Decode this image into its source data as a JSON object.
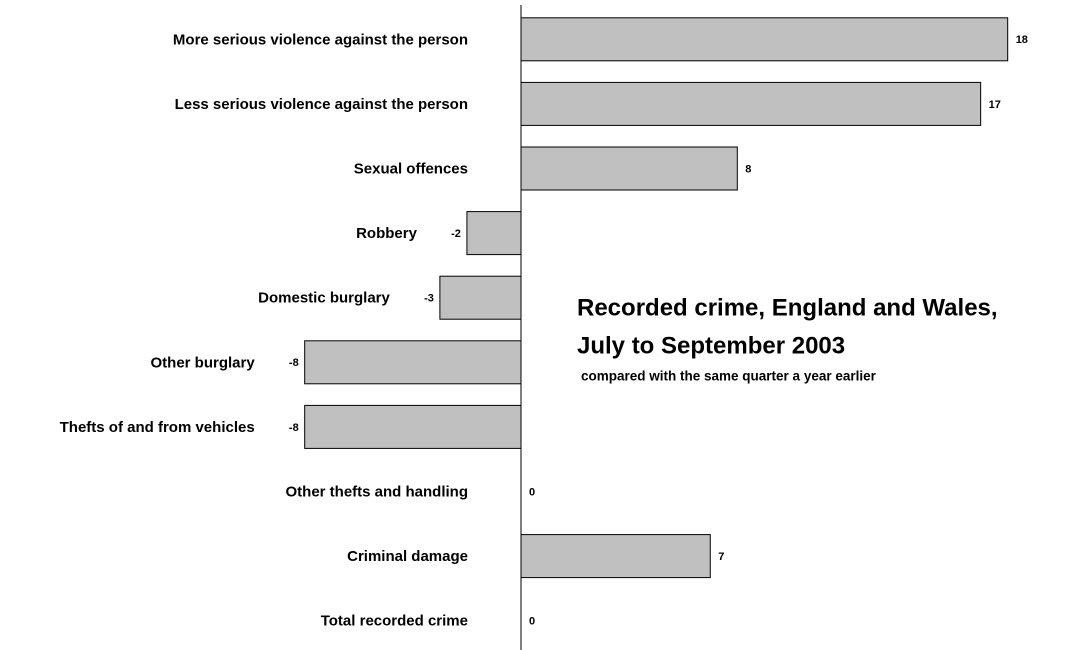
{
  "chart_data": {
    "type": "bar",
    "orientation": "horizontal",
    "title": [
      "Recorded crime, England and Wales,",
      "July to September 2003"
    ],
    "subtitle": "compared with the same quarter a year earlier",
    "categories": [
      "More serious violence against the person",
      "Less serious violence against the person",
      "Sexual offences",
      "Robbery",
      "Domestic burglary",
      "Other burglary",
      "Thefts of and from vehicles",
      "Other thefts and handling",
      "Criminal damage",
      "Total recorded crime"
    ],
    "values": [
      18,
      17,
      8,
      -2,
      -3,
      -8,
      -8,
      0,
      7,
      0
    ],
    "color": "#c0c0c0"
  }
}
